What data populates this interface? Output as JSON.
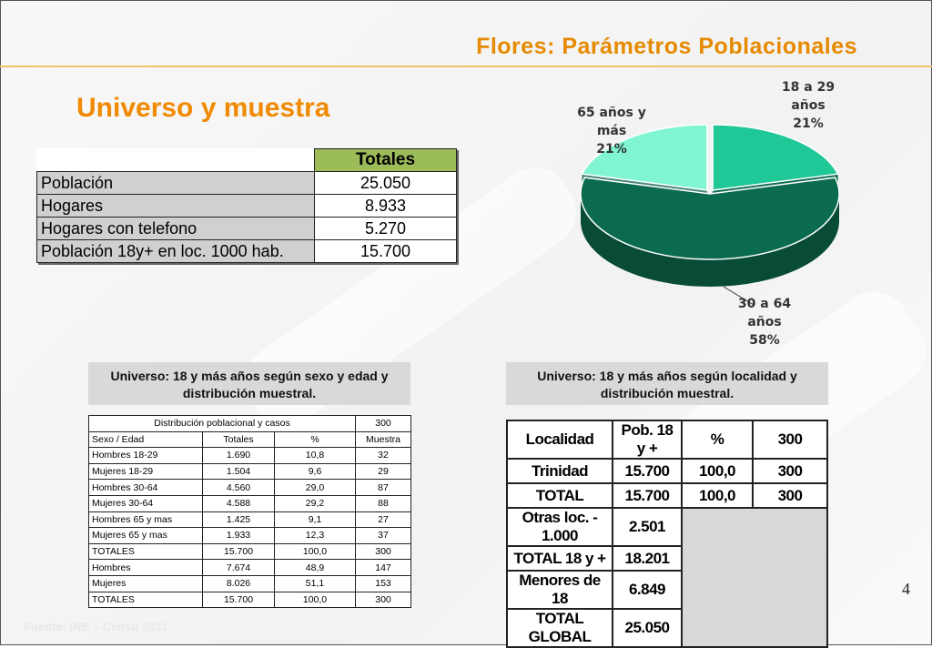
{
  "header": {
    "title": "Flores: Parámetros Poblacionales",
    "subtitle": "Universo y muestra"
  },
  "totals_table": {
    "header": "Totales",
    "rows": [
      {
        "label": "Población",
        "value": "25.050"
      },
      {
        "label": "Hogares",
        "value": "8.933"
      },
      {
        "label": "Hogares con telefono",
        "value": "5.270"
      },
      {
        "label": "Población 18y+ en loc. 1000 hab.",
        "value": "15.700"
      }
    ]
  },
  "captions": {
    "left": "Universo: 18 y más años según sexo y edad y distribución muestral.",
    "right": "Universo: 18 y más años según localidad y distribución muestral."
  },
  "dist_table": {
    "title": "Distribución poblacional y casos",
    "title_value": "300",
    "columns": [
      "Sexo / Edad",
      "Totales",
      "%",
      "Muestra"
    ],
    "rows": [
      [
        "Hombres 18-29",
        "1.690",
        "10,8",
        "32"
      ],
      [
        "Mujeres 18-29",
        "1.504",
        "9,6",
        "29"
      ],
      [
        "Hombres 30-64",
        "4.560",
        "29,0",
        "87"
      ],
      [
        "Mujeres 30-64",
        "4.588",
        "29,2",
        "88"
      ],
      [
        "Hombres 65 y mas",
        "1.425",
        "9,1",
        "27"
      ],
      [
        "Mujeres 65 y mas",
        "1.933",
        "12,3",
        "37"
      ],
      [
        "TOTALES",
        "15.700",
        "100,0",
        "300"
      ],
      [
        "Hombres",
        "7.674",
        "48,9",
        "147"
      ],
      [
        "Mujeres",
        "8.026",
        "51,1",
        "153"
      ],
      [
        "TOTALES",
        "15.700",
        "100,0",
        "300"
      ]
    ]
  },
  "loc_table": {
    "columns": [
      "Localidad",
      "Pob. 18 y +",
      "%",
      "300"
    ],
    "rows_full": [
      [
        "Trinidad",
        "15.700",
        "100,0",
        "300"
      ],
      [
        "TOTAL",
        "15.700",
        "100,0",
        "300"
      ]
    ],
    "rows_partial": [
      [
        "Otras loc. - 1.000",
        "2.501"
      ],
      [
        "TOTAL 18 y +",
        "18.201"
      ],
      [
        "Menores de 18",
        "6.849"
      ],
      [
        "TOTAL GLOBAL",
        "25.050"
      ]
    ]
  },
  "chart_data": {
    "type": "pie",
    "title": "",
    "slices": [
      {
        "label_lines": [
          "18 a 29",
          "años",
          "21%"
        ],
        "value": 21,
        "color": "#1fc896"
      },
      {
        "label_lines": [
          "30 a 64",
          "años",
          "58%"
        ],
        "value": 58,
        "color": "#0b6b4e"
      },
      {
        "label_lines": [
          "65 años y",
          "más",
          "21%"
        ],
        "value": 21,
        "color": "#7ff5d2"
      }
    ]
  },
  "footer": {
    "page_number": "4",
    "source": "Fuente: INE – Censo 2011"
  },
  "colors": {
    "accent_orange": "#e68a00",
    "table_header_green": "#9cbb59",
    "label_gray": "#d0d0d0"
  }
}
